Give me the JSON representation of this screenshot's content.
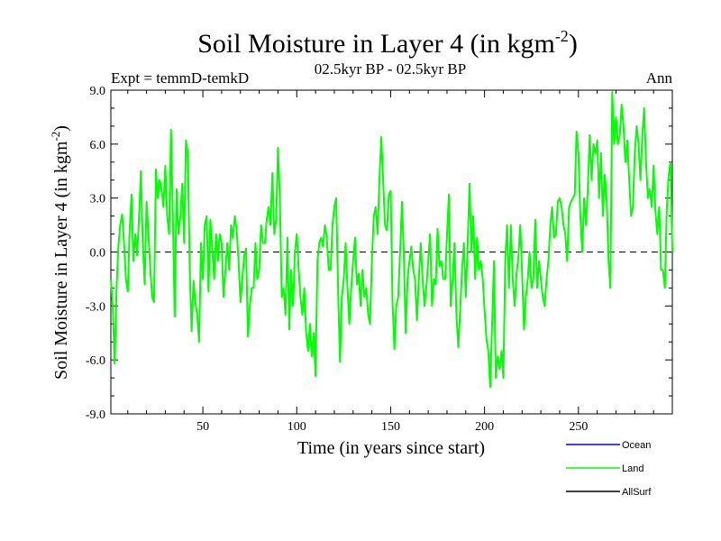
{
  "chart_data": {
    "type": "line",
    "title": "Soil Moisture in Layer 4 (in kgm",
    "title_sup": "-2",
    "title_end": ")",
    "subtitle_left": "Expt = temmD-temkD",
    "subtitle_center": "02.5kyr BP - 02.5kyr BP",
    "subtitle_right": "Ann",
    "xlabel": "Time (in years since start)",
    "ylabel": "Soil Moisture in Layer 4 (in kgm",
    "ylabel_sup": "-2",
    "ylabel_end": ")",
    "xlim": [
      1,
      300
    ],
    "ylim": [
      -9,
      9
    ],
    "x_ticks": [
      50,
      100,
      150,
      200,
      250
    ],
    "x_tick_labels": [
      "50",
      "100",
      "150",
      "200",
      "250"
    ],
    "y_ticks": [
      -9,
      -6,
      -3,
      0,
      3,
      6,
      9
    ],
    "y_tick_labels": [
      "-9.0",
      "-6.0",
      "-3.0",
      "0.0",
      "3.0",
      "6.0",
      "9.0"
    ],
    "reference_line": 0,
    "series": [
      {
        "name": "Ocean",
        "color": "#0000ff",
        "values": []
      },
      {
        "name": "Land",
        "color": "#00ff00",
        "points": [
          [
            1,
            -1.5
          ],
          [
            2,
            -3
          ],
          [
            3,
            -6.2
          ],
          [
            4,
            -2
          ],
          [
            5,
            0.3
          ],
          [
            6,
            1.5
          ],
          [
            7,
            2.1
          ],
          [
            8,
            0.5
          ],
          [
            9,
            -1.5
          ],
          [
            10,
            -2.2
          ],
          [
            11,
            1.2
          ],
          [
            12,
            3.2
          ],
          [
            13,
            -0.5
          ],
          [
            14,
            1
          ],
          [
            15,
            -0.2
          ],
          [
            16,
            2
          ],
          [
            17,
            4.5
          ],
          [
            18,
            0.5
          ],
          [
            19,
            -1.8
          ],
          [
            20,
            2.8
          ],
          [
            21,
            1
          ],
          [
            22,
            -1
          ],
          [
            23,
            -2.5
          ],
          [
            24,
            -2.8
          ],
          [
            25,
            4.6
          ],
          [
            26,
            3
          ],
          [
            27,
            4
          ],
          [
            28,
            3.5
          ],
          [
            29,
            2.5
          ],
          [
            30,
            4.8
          ],
          [
            31,
            2
          ],
          [
            32,
            1
          ],
          [
            33,
            6.8
          ],
          [
            34,
            2
          ],
          [
            35,
            -3.6
          ],
          [
            36,
            3.5
          ],
          [
            37,
            1
          ],
          [
            38,
            2
          ],
          [
            39,
            3.8
          ],
          [
            40,
            0.5
          ],
          [
            41,
            6.2
          ],
          [
            42,
            5.5
          ],
          [
            43,
            -1
          ],
          [
            44,
            -4.4
          ],
          [
            45,
            -1.6
          ],
          [
            46,
            -2.8
          ],
          [
            47,
            -3.5
          ],
          [
            48,
            -5
          ],
          [
            49,
            0.5
          ],
          [
            50,
            -1.5
          ],
          [
            51,
            1.5
          ],
          [
            52,
            2
          ],
          [
            53,
            -2.2
          ],
          [
            54,
            1.8
          ],
          [
            55,
            0.2
          ],
          [
            56,
            -1.5
          ],
          [
            57,
            1
          ],
          [
            58,
            -0.5
          ],
          [
            59,
            1
          ],
          [
            60,
            0.5
          ],
          [
            61,
            -2.5
          ],
          [
            62,
            -1
          ],
          [
            63,
            0.5
          ],
          [
            64,
            -1
          ],
          [
            65,
            1.5
          ],
          [
            66,
            0.8
          ],
          [
            67,
            2
          ],
          [
            68,
            1.2
          ],
          [
            69,
            -0.5
          ],
          [
            70,
            -2.8
          ],
          [
            71,
            -1.5
          ],
          [
            72,
            -0.2
          ],
          [
            73,
            0.2
          ],
          [
            74,
            -4.7
          ],
          [
            75,
            -3
          ],
          [
            76,
            -2
          ],
          [
            77,
            -2
          ],
          [
            78,
            0.5
          ],
          [
            79,
            -1.5
          ],
          [
            80,
            -1
          ],
          [
            81,
            1.5
          ],
          [
            82,
            0.5
          ],
          [
            83,
            0.5
          ],
          [
            84,
            1.8
          ],
          [
            85,
            2.5
          ],
          [
            86,
            1.5
          ],
          [
            87,
            4.4
          ],
          [
            88,
            1
          ],
          [
            89,
            1.8
          ],
          [
            90,
            5.8
          ],
          [
            91,
            3
          ],
          [
            92,
            -2.5
          ],
          [
            93,
            -2
          ],
          [
            94,
            -3.5
          ],
          [
            95,
            0.8
          ],
          [
            96,
            -4.3
          ],
          [
            97,
            -1
          ],
          [
            98,
            -3
          ],
          [
            99,
            0
          ],
          [
            100,
            1
          ],
          [
            101,
            -1
          ],
          [
            102,
            -2.5
          ],
          [
            103,
            -3.5
          ],
          [
            104,
            -2
          ],
          [
            105,
            -4.5
          ],
          [
            106,
            -5.5
          ],
          [
            107,
            -4
          ],
          [
            108,
            -5.8
          ],
          [
            109,
            -4.5
          ],
          [
            110,
            -6.9
          ],
          [
            111,
            -0.5
          ],
          [
            112,
            0.5
          ],
          [
            113,
            0.8
          ],
          [
            114,
            0.3
          ],
          [
            115,
            1.5
          ],
          [
            116,
            0.8
          ],
          [
            117,
            -1
          ],
          [
            118,
            -1
          ],
          [
            119,
            1.5
          ],
          [
            120,
            2.5
          ],
          [
            121,
            3
          ],
          [
            122,
            -2
          ],
          [
            123,
            -6.1
          ],
          [
            124,
            -2.5
          ],
          [
            125,
            -1.5
          ],
          [
            126,
            0.5
          ],
          [
            127,
            -2
          ],
          [
            128,
            -4
          ],
          [
            129,
            -2
          ],
          [
            130,
            -0.5
          ],
          [
            131,
            0.8
          ],
          [
            132,
            -1.8
          ],
          [
            133,
            -1.2
          ],
          [
            134,
            -3
          ],
          [
            135,
            -1
          ],
          [
            136,
            -2.5
          ],
          [
            137,
            -2
          ],
          [
            138,
            -3.5
          ],
          [
            139,
            -4
          ],
          [
            140,
            -0.5
          ],
          [
            141,
            2
          ],
          [
            142,
            2.5
          ],
          [
            143,
            1
          ],
          [
            144,
            4
          ],
          [
            145,
            6.4
          ],
          [
            146,
            4
          ],
          [
            147,
            1.5
          ],
          [
            148,
            1.2
          ],
          [
            149,
            3.2
          ],
          [
            150,
            3.4
          ],
          [
            151,
            -2.8
          ],
          [
            152,
            -5.4
          ],
          [
            153,
            -3
          ],
          [
            154,
            -2.5
          ],
          [
            155,
            0
          ],
          [
            156,
            2.8
          ],
          [
            157,
            0
          ],
          [
            158,
            -4.5
          ],
          [
            159,
            -1.5
          ],
          [
            160,
            -0.5
          ],
          [
            161,
            0.3
          ],
          [
            162,
            -1
          ],
          [
            163,
            -1.5
          ],
          [
            164,
            -3.8
          ],
          [
            165,
            -1.5
          ],
          [
            166,
            0.5
          ],
          [
            167,
            -1.5
          ],
          [
            168,
            -3
          ],
          [
            169,
            -2
          ],
          [
            170,
            -0.5
          ],
          [
            171,
            1
          ],
          [
            172,
            -3
          ],
          [
            173,
            -1.5
          ],
          [
            174,
            -1.8
          ],
          [
            175,
            1.3
          ],
          [
            176,
            -0.8
          ],
          [
            177,
            -0.5
          ],
          [
            178,
            -1.5
          ],
          [
            179,
            -1.5
          ],
          [
            180,
            1
          ],
          [
            181,
            3.2
          ],
          [
            182,
            -3
          ],
          [
            183,
            -1.5
          ],
          [
            184,
            0.5
          ],
          [
            185,
            -3.5
          ],
          [
            186,
            -5.3
          ],
          [
            187,
            -3.2
          ],
          [
            188,
            -1
          ],
          [
            189,
            0.5
          ],
          [
            190,
            -2.5
          ],
          [
            191,
            0.5
          ],
          [
            192,
            3.8
          ],
          [
            193,
            0
          ],
          [
            194,
            2
          ],
          [
            195,
            -1.5
          ],
          [
            196,
            0.8
          ],
          [
            197,
            -1
          ],
          [
            198,
            -0.5
          ],
          [
            199,
            -1.5
          ],
          [
            200,
            -3.2
          ],
          [
            201,
            -4.8
          ],
          [
            202,
            -5.5
          ],
          [
            203,
            -7.5
          ],
          [
            204,
            -4
          ],
          [
            205,
            -0.5
          ],
          [
            206,
            -7
          ],
          [
            207,
            -5.8
          ],
          [
            208,
            -6.5
          ],
          [
            209,
            -5.5
          ],
          [
            210,
            -7
          ],
          [
            211,
            -0.5
          ],
          [
            212,
            1.5
          ],
          [
            213,
            -2
          ],
          [
            214,
            1.5
          ],
          [
            215,
            -1.5
          ],
          [
            216,
            -3
          ],
          [
            217,
            -1.2
          ],
          [
            218,
            -0.3
          ],
          [
            219,
            1.5
          ],
          [
            220,
            -1.2
          ],
          [
            221,
            -4.3
          ],
          [
            222,
            -2.5
          ],
          [
            223,
            -1.5
          ],
          [
            224,
            0
          ],
          [
            225,
            -2
          ],
          [
            226,
            -1.5
          ],
          [
            227,
            1.8
          ],
          [
            228,
            -2
          ],
          [
            229,
            -0.5
          ],
          [
            230,
            -1.5
          ],
          [
            231,
            -2.5
          ],
          [
            232,
            -3
          ],
          [
            233,
            -1.5
          ],
          [
            234,
            -0.5
          ],
          [
            235,
            1.5
          ],
          [
            236,
            2.5
          ],
          [
            237,
            0.8
          ],
          [
            238,
            1
          ],
          [
            239,
            2.8
          ],
          [
            240,
            3
          ],
          [
            241,
            2.5
          ],
          [
            242,
            1.5
          ],
          [
            243,
            1
          ],
          [
            244,
            -0.5
          ],
          [
            245,
            2.5
          ],
          [
            246,
            2.8
          ],
          [
            247,
            3
          ],
          [
            248,
            3.2
          ],
          [
            249,
            6.7
          ],
          [
            250,
            5.5
          ],
          [
            251,
            2
          ],
          [
            252,
            0
          ],
          [
            253,
            3
          ],
          [
            254,
            1.5
          ],
          [
            255,
            3.5
          ],
          [
            256,
            6.5
          ],
          [
            257,
            4
          ],
          [
            258,
            6
          ],
          [
            259,
            5.5
          ],
          [
            260,
            6.2
          ],
          [
            261,
            3
          ],
          [
            262,
            5.5
          ],
          [
            263,
            2
          ],
          [
            264,
            4.3
          ],
          [
            265,
            3
          ],
          [
            266,
            -0.5
          ],
          [
            267,
            -2
          ],
          [
            268,
            8.9
          ],
          [
            269,
            6
          ],
          [
            270,
            7.5
          ],
          [
            271,
            6
          ],
          [
            272,
            6.5
          ],
          [
            273,
            8.2
          ],
          [
            274,
            7
          ],
          [
            275,
            5
          ],
          [
            276,
            6.2
          ],
          [
            277,
            4
          ],
          [
            278,
            2
          ],
          [
            279,
            2.5
          ],
          [
            280,
            5.5
          ],
          [
            281,
            7
          ],
          [
            282,
            6
          ],
          [
            283,
            4
          ],
          [
            284,
            6.5
          ],
          [
            285,
            8
          ],
          [
            286,
            5
          ],
          [
            287,
            3
          ],
          [
            288,
            3.5
          ],
          [
            289,
            2.5
          ],
          [
            290,
            4.8
          ],
          [
            291,
            2.3
          ],
          [
            292,
            1
          ],
          [
            293,
            2.5
          ],
          [
            294,
            -1
          ],
          [
            295,
            -1
          ],
          [
            296,
            -2
          ],
          [
            297,
            2.2
          ],
          [
            298,
            4.2
          ],
          [
            299,
            5
          ],
          [
            300,
            0
          ]
        ]
      },
      {
        "name": "AllSurf",
        "color": "#000000",
        "values": []
      }
    ],
    "legend": [
      {
        "name": "Ocean",
        "color": "#0000ff"
      },
      {
        "name": "Land",
        "color": "#00ff00"
      },
      {
        "name": "AllSurf",
        "color": "#000000"
      }
    ],
    "legend_position": "bottom-right"
  }
}
